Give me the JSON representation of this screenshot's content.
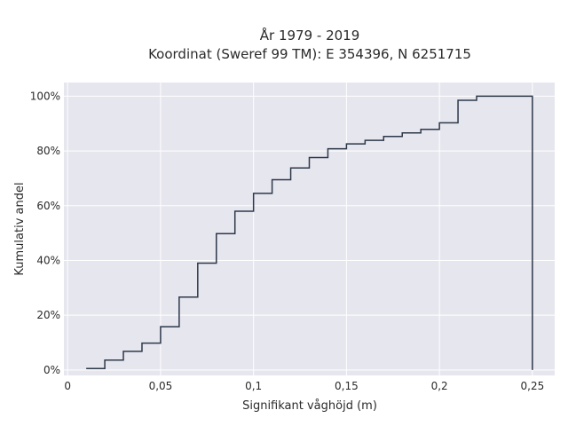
{
  "chart_data": {
    "type": "line",
    "step": "post",
    "title_line1": "År 1979 - 2019",
    "title_line2": "Koordinat (Sweref 99 TM): E 354396, N 6251715",
    "xlabel": "Signifikant våghöjd (m)",
    "ylabel": "Kumulativ andel",
    "xlim": [
      -0.002,
      0.262
    ],
    "ylim": [
      -0.02,
      1.05
    ],
    "x_ticks": [
      0,
      0.05,
      0.1,
      0.15,
      0.2,
      0.25
    ],
    "x_tick_labels": [
      "0",
      "0,05",
      "0,1",
      "0,15",
      "0,2",
      "0,25"
    ],
    "y_ticks": [
      0,
      0.2,
      0.4,
      0.6,
      0.8,
      1.0
    ],
    "y_tick_labels": [
      "0%",
      "20%",
      "40%",
      "60%",
      "80%",
      "100%"
    ],
    "grid": true,
    "colors": {
      "plot_bg": "#e6e6ef",
      "grid": "#ffffff",
      "line": "#2d3848"
    },
    "x": [
      0.01,
      0.02,
      0.03,
      0.04,
      0.05,
      0.06,
      0.07,
      0.08,
      0.09,
      0.1,
      0.11,
      0.12,
      0.13,
      0.14,
      0.15,
      0.16,
      0.17,
      0.18,
      0.19,
      0.2,
      0.21,
      0.22,
      0.23,
      0.24,
      0.25,
      0.25
    ],
    "y": [
      0.005,
      0.036,
      0.068,
      0.098,
      0.158,
      0.266,
      0.39,
      0.498,
      0.58,
      0.645,
      0.695,
      0.738,
      0.776,
      0.808,
      0.826,
      0.839,
      0.853,
      0.866,
      0.879,
      0.903,
      0.985,
      1.0,
      1.0,
      1.0,
      1.0,
      0.0
    ]
  }
}
